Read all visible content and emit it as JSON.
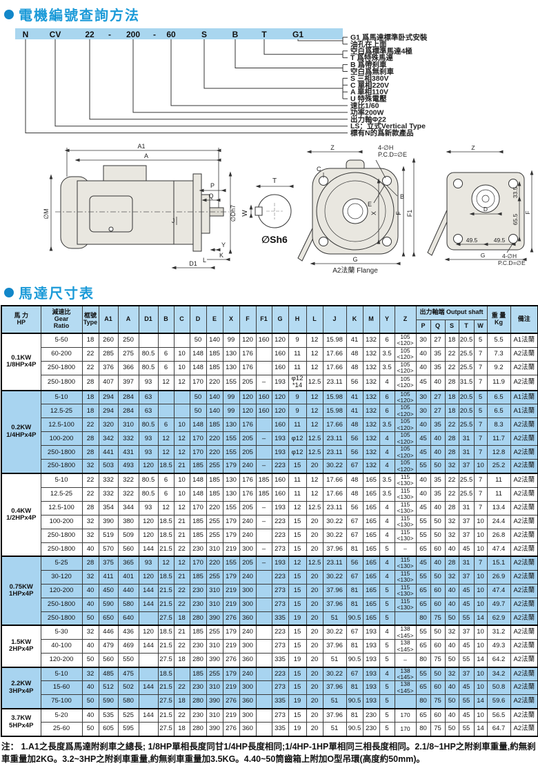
{
  "section1": {
    "title": "電機編號查詢方法",
    "codes": [
      "N",
      "CV",
      "22",
      "-",
      "200",
      "-",
      "60",
      "S",
      "B",
      "T",
      "G1"
    ],
    "labels": [
      "G1 爲馬達標準卧式安裝",
      "油孔在上面",
      "空白爲標準馬達4極",
      "T 爲特殊馬達",
      "B 爲帶刹車",
      "空白爲無刹車",
      "S 三相380V",
      "C 單相220V",
      "A 單相110V",
      "U 特殊電壓",
      "速比1/60",
      "功率200W",
      "出力軸Φ22",
      "LS：立式Vertical Type",
      "標有N的爲新款產品"
    ]
  },
  "drawings": {
    "side": {
      "a1": "A1",
      "a": "A",
      "m": "∅M",
      "p": "P",
      "q": "Q",
      "dh7": "∅Dh7",
      "j": "J",
      "y": "Y",
      "l": "L",
      "k": "K",
      "d1": "D1"
    },
    "shaft": {
      "t": "T",
      "w": "W",
      "sh6": "∅Sh6"
    },
    "flange": {
      "z": "Z",
      "c": "C",
      "b": "B",
      "e": "E",
      "x": "X",
      "f": "F",
      "f1": "F1",
      "g": "G",
      "holes": "4-∅H",
      "pcd": "P.C.D=∅E",
      "caption": "A2法蘭 Flange"
    },
    "square": {
      "z": "Z",
      "d335": "33.5",
      "d655": "65.5",
      "f": "F",
      "d": "D",
      "d495a": "49.5",
      "d495b": "49.5",
      "g": "G",
      "holes": "4-∅H",
      "pcd": "P.C.D=∅E"
    }
  },
  "section2": {
    "title": "馬達尺寸表"
  },
  "table": {
    "header": {
      "hp": "馬 力\nHP",
      "ratio": "減速比\nGear\nRatio",
      "type": "框號\nType",
      "dims": [
        "A1",
        "A",
        "D1",
        "B",
        "C",
        "D",
        "E",
        "X",
        "F",
        "F1",
        "G",
        "H",
        "L",
        "J",
        "K",
        "M",
        "Y",
        "Z"
      ],
      "shaft": "出力軸端 Output shaft",
      "shaft_cols": [
        "P",
        "Q",
        "S",
        "T",
        "W"
      ],
      "weight": "重 量\nKg",
      "remark": "備注"
    },
    "groups": [
      {
        "power": "0.1KW",
        "hp": "1/8HPx4P",
        "shaded": false,
        "rows": [
          [
            "5-50",
            "18",
            "260",
            "250",
            "",
            "",
            "",
            "50",
            "140",
            "99",
            "120",
            "160",
            "120",
            "9",
            "12",
            "15.98",
            "41",
            "132",
            "6",
            "105\n<120>",
            "30",
            "27",
            "18",
            "20.5",
            "5",
            "5.5",
            "A1法蘭"
          ],
          [
            "60-200",
            "22",
            "285",
            "275",
            "80.5",
            "6",
            "10",
            "148",
            "185",
            "130",
            "176",
            "",
            "160",
            "11",
            "12",
            "17.66",
            "48",
            "132",
            "3.5",
            "105\n<120>",
            "40",
            "35",
            "22",
            "25.5",
            "7",
            "7.3",
            "A2法蘭"
          ],
          [
            "250-1800",
            "22",
            "376",
            "366",
            "80.5",
            "6",
            "10",
            "148",
            "185",
            "130",
            "176",
            "",
            "160",
            "11",
            "12",
            "17.66",
            "48",
            "132",
            "3.5",
            "105\n<120>",
            "40",
            "35",
            "22",
            "25.5",
            "7",
            "9.2",
            "A2法蘭"
          ],
          [
            "250-1800",
            "28",
            "407",
            "397",
            "93",
            "12",
            "12",
            "170",
            "220",
            "155",
            "205",
            "–",
            "193",
            "φ12\n*14",
            "12.5",
            "23.11",
            "56",
            "132",
            "4",
            "105\n<120>",
            "45",
            "40",
            "28",
            "31.5",
            "7",
            "11.9",
            "A2法蘭"
          ]
        ]
      },
      {
        "power": "0.2KW",
        "hp": "1/4HPx4P",
        "shaded": true,
        "rows": [
          [
            "5-10",
            "18",
            "294",
            "284",
            "63",
            "",
            "",
            "50",
            "140",
            "99",
            "120",
            "160",
            "120",
            "9",
            "12",
            "15.98",
            "41",
            "132",
            "6",
            "105\n<120>",
            "30",
            "27",
            "18",
            "20.5",
            "5",
            "6.5",
            "A1法蘭"
          ],
          [
            "12.5-25",
            "18",
            "294",
            "284",
            "63",
            "",
            "",
            "50",
            "140",
            "99",
            "120",
            "160",
            "120",
            "9",
            "12",
            "15.98",
            "41",
            "132",
            "6",
            "105\n<120>",
            "30",
            "27",
            "18",
            "20.5",
            "5",
            "6.5",
            "A1法蘭"
          ],
          [
            "12.5-100",
            "22",
            "320",
            "310",
            "80.5",
            "6",
            "10",
            "148",
            "185",
            "130",
            "176",
            "",
            "160",
            "11",
            "12",
            "17.66",
            "48",
            "132",
            "3.5",
            "105\n<120>",
            "40",
            "35",
            "22",
            "25.5",
            "7",
            "8.3",
            "A2法蘭"
          ],
          [
            "100-200",
            "28",
            "342",
            "332",
            "93",
            "12",
            "12",
            "170",
            "220",
            "155",
            "205",
            "–",
            "193",
            "φ12",
            "12.5",
            "23.11",
            "56",
            "132",
            "4",
            "105\n<120>",
            "45",
            "40",
            "28",
            "31",
            "7",
            "11.7",
            "A2法蘭"
          ],
          [
            "250-1800",
            "28",
            "441",
            "431",
            "93",
            "12",
            "12",
            "170",
            "220",
            "155",
            "205",
            "",
            "193",
            "φ12",
            "12.5",
            "23.11",
            "56",
            "132",
            "4",
            "105\n<120>",
            "45",
            "40",
            "28",
            "31",
            "7",
            "12.8",
            "A2法蘭"
          ],
          [
            "250-1800",
            "32",
            "503",
            "493",
            "120",
            "18.5",
            "21",
            "185",
            "255",
            "179",
            "240",
            "–",
            "223",
            "15",
            "20",
            "30.22",
            "67",
            "132",
            "4",
            "105\n<120>",
            "55",
            "50",
            "32",
            "37",
            "10",
            "25.2",
            "A2法蘭"
          ]
        ]
      },
      {
        "power": "0.4KW",
        "hp": "1/2HPx4P",
        "shaded": false,
        "rows": [
          [
            "5-10",
            "22",
            "332",
            "322",
            "80.5",
            "6",
            "10",
            "148",
            "185",
            "130",
            "176",
            "185",
            "160",
            "11",
            "12",
            "17.66",
            "48",
            "165",
            "3.5",
            "115\n<130>",
            "40",
            "35",
            "22",
            "25.5",
            "7",
            "11",
            "A2法蘭"
          ],
          [
            "12.5-25",
            "22",
            "332",
            "322",
            "80.5",
            "6",
            "10",
            "148",
            "185",
            "130",
            "176",
            "185",
            "160",
            "11",
            "12",
            "17.66",
            "48",
            "165",
            "3.5",
            "115\n<130>",
            "40",
            "35",
            "22",
            "25.5",
            "7",
            "11",
            "A2法蘭"
          ],
          [
            "12.5-100",
            "28",
            "354",
            "344",
            "93",
            "12",
            "12",
            "170",
            "220",
            "155",
            "205",
            "–",
            "193",
            "12",
            "12.5",
            "23.11",
            "56",
            "165",
            "4",
            "115\n<130>",
            "45",
            "40",
            "28",
            "31",
            "7",
            "13.4",
            "A2法蘭"
          ],
          [
            "100-200",
            "32",
            "390",
            "380",
            "120",
            "18.5",
            "21",
            "185",
            "255",
            "179",
            "240",
            "–",
            "223",
            "15",
            "20",
            "30.22",
            "67",
            "165",
            "4",
            "115\n<130>",
            "55",
            "50",
            "32",
            "37",
            "10",
            "24.4",
            "A2法蘭"
          ],
          [
            "250-1800",
            "32",
            "519",
            "509",
            "120",
            "18.5",
            "21",
            "185",
            "255",
            "179",
            "240",
            "",
            "223",
            "15",
            "20",
            "30.22",
            "67",
            "165",
            "4",
            "115\n<130>",
            "55",
            "50",
            "32",
            "37",
            "10",
            "26.8",
            "A2法蘭"
          ],
          [
            "250-1800",
            "40",
            "570",
            "560",
            "144",
            "21.5",
            "22",
            "230",
            "310",
            "219",
            "300",
            "–",
            "273",
            "15",
            "20",
            "37.96",
            "81",
            "165",
            "5",
            "–",
            "65",
            "60",
            "40",
            "45",
            "10",
            "47.4",
            "A2法蘭"
          ]
        ]
      },
      {
        "power": "0.75KW",
        "hp": "1HPx4P",
        "shaded": true,
        "rows": [
          [
            "5-25",
            "28",
            "375",
            "365",
            "93",
            "12",
            "12",
            "170",
            "220",
            "155",
            "205",
            "–",
            "193",
            "12",
            "12.5",
            "23.11",
            "56",
            "165",
            "4",
            "115\n<130>",
            "45",
            "40",
            "28",
            "31",
            "7",
            "15.1",
            "A2法蘭"
          ],
          [
            "30-120",
            "32",
            "411",
            "401",
            "120",
            "18.5",
            "21",
            "185",
            "255",
            "179",
            "240",
            "",
            "223",
            "15",
            "20",
            "30.22",
            "67",
            "165",
            "4",
            "115\n<130>",
            "55",
            "50",
            "32",
            "37",
            "10",
            "26.9",
            "A2法蘭"
          ],
          [
            "120-200",
            "40",
            "450",
            "440",
            "144",
            "21.5",
            "22",
            "230",
            "310",
            "219",
            "300",
            "",
            "273",
            "15",
            "20",
            "37.96",
            "81",
            "165",
            "5",
            "115\n<130>",
            "65",
            "60",
            "40",
            "45",
            "10",
            "47.4",
            "A2法蘭"
          ],
          [
            "250-1800",
            "40",
            "590",
            "580",
            "144",
            "21.5",
            "22",
            "230",
            "310",
            "219",
            "300",
            "",
            "273",
            "15",
            "20",
            "37.96",
            "81",
            "165",
            "5",
            "115\n<130>",
            "65",
            "60",
            "40",
            "45",
            "10",
            "49.7",
            "A2法蘭"
          ],
          [
            "250-1800",
            "50",
            "650",
            "640",
            "",
            "27.5",
            "18",
            "280",
            "390",
            "276",
            "360",
            "",
            "335",
            "19",
            "20",
            "51",
            "90.5",
            "165",
            "5",
            "",
            "80",
            "75",
            "50",
            "55",
            "14",
            "62.9",
            "A2法蘭"
          ]
        ]
      },
      {
        "power": "1.5KW",
        "hp": "2HPx4P",
        "shaded": false,
        "rows": [
          [
            "5-30",
            "32",
            "446",
            "436",
            "120",
            "18.5",
            "21",
            "185",
            "255",
            "179",
            "240",
            "",
            "223",
            "15",
            "20",
            "30.22",
            "67",
            "193",
            "4",
            "138\n<145>",
            "55",
            "50",
            "32",
            "37",
            "10",
            "31.2",
            "A2法蘭"
          ],
          [
            "40-100",
            "40",
            "479",
            "469",
            "144",
            "21.5",
            "22",
            "230",
            "310",
            "219",
            "300",
            "",
            "273",
            "15",
            "20",
            "37.96",
            "81",
            "193",
            "5",
            "138\n<145>",
            "65",
            "60",
            "40",
            "45",
            "10",
            "49.3",
            "A2法蘭"
          ],
          [
            "120-200",
            "50",
            "560",
            "550",
            "",
            "27.5",
            "18",
            "280",
            "390",
            "276",
            "360",
            "",
            "335",
            "19",
            "20",
            "51",
            "90.5",
            "193",
            "5",
            "–",
            "80",
            "75",
            "50",
            "55",
            "14",
            "64.2",
            "A2法蘭"
          ]
        ]
      },
      {
        "power": "2.2KW",
        "hp": "3HPx4P",
        "shaded": true,
        "rows": [
          [
            "5-10",
            "32",
            "485",
            "475",
            "",
            "18.5",
            "",
            "185",
            "255",
            "179",
            "240",
            "",
            "223",
            "15",
            "20",
            "30.22",
            "67",
            "193",
            "4",
            "138\n<145>",
            "55",
            "50",
            "32",
            "37",
            "10",
            "34.2",
            "A2法蘭"
          ],
          [
            "15-60",
            "40",
            "512",
            "502",
            "144",
            "21.5",
            "22",
            "230",
            "310",
            "219",
            "300",
            "",
            "273",
            "15",
            "20",
            "37.96",
            "81",
            "193",
            "5",
            "138\n<145>",
            "65",
            "60",
            "40",
            "45",
            "10",
            "50.8",
            "A2法蘭"
          ],
          [
            "75-100",
            "50",
            "590",
            "580",
            "",
            "27.5",
            "18",
            "280",
            "390",
            "276",
            "360",
            "",
            "335",
            "19",
            "20",
            "51",
            "90.5",
            "193",
            "5",
            "",
            "80",
            "75",
            "50",
            "55",
            "14",
            "59.6",
            "A2法蘭"
          ]
        ]
      },
      {
        "power": "3.7KW",
        "hp": "5HPx4P",
        "shaded": false,
        "rows": [
          [
            "5-20",
            "40",
            "535",
            "525",
            "144",
            "21.5",
            "22",
            "230",
            "310",
            "219",
            "300",
            "",
            "273",
            "15",
            "20",
            "37.96",
            "81",
            "230",
            "5",
            "170",
            "65",
            "60",
            "40",
            "45",
            "10",
            "56.5",
            "A2法蘭"
          ],
          [
            "25-60",
            "50",
            "605",
            "595",
            "",
            "27.5",
            "18",
            "280",
            "390",
            "276",
            "360",
            "",
            "335",
            "19",
            "20",
            "51",
            "90.5",
            "230",
            "5",
            "170",
            "80",
            "75",
            "50",
            "55",
            "14",
            "64.7",
            "A2法蘭"
          ]
        ]
      }
    ]
  },
  "note": "注：  1.A1之長度爲馬達附刹車之總長; 1/8HP單相長度同甘1/4HP長度相同;1/4HP-1HP單相同三相長度相同。2.1/8~1HP之附刹車重量,約無刹車重量加2KG。3.2~3HP之附刹車重量,約無刹車重量加3.5KG。4.40~50筒齒箱上附加O型吊環(高度約50mm)。"
}
